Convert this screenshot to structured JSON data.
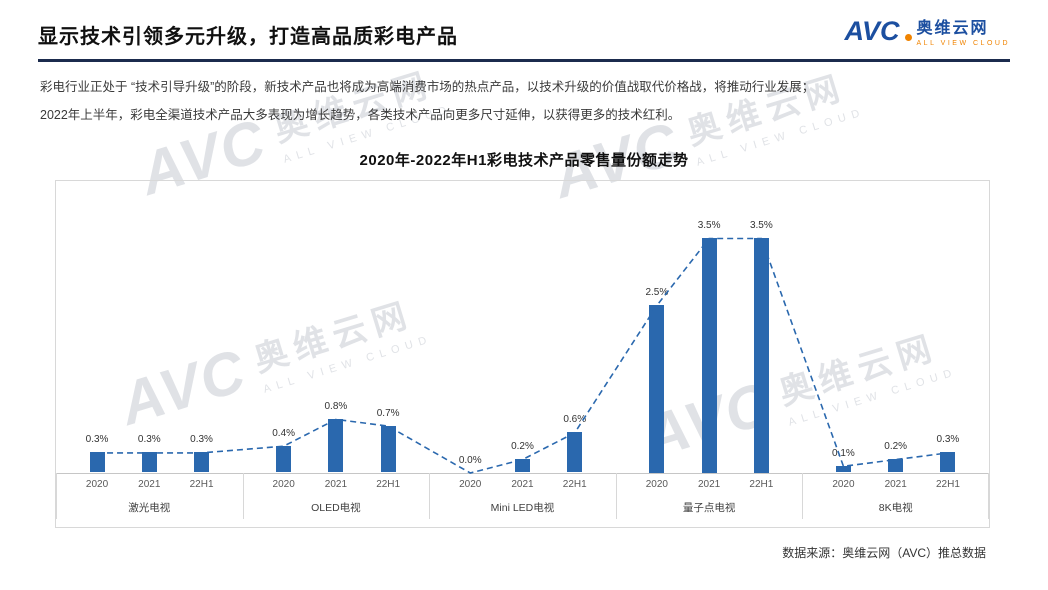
{
  "page": {
    "title": "显示技术引领多元升级，打造高品质彩电产品"
  },
  "logo": {
    "brand": "AVC",
    "name": "奥维云网",
    "tagline": "ALL VIEW CLOUD"
  },
  "intro": {
    "line1": "彩电行业正处于 “技术引导升级”的阶段，新技术产品也将成为高端消费市场的热点产品，以技术升级的价值战取代价格战，将推动行业发展；",
    "line2": "2022年上半年，彩电全渠道技术产品大多表现为增长趋势，各类技术产品向更多尺寸延伸，以获得更多的技术红利。"
  },
  "chart_data": {
    "type": "bar",
    "title": "2020年-2022年H1彩电技术产品零售量份额走势",
    "categories": [
      "2020",
      "2021",
      "22H1"
    ],
    "groups": [
      {
        "name": "激光电视",
        "values": [
          0.3,
          0.3,
          0.3
        ]
      },
      {
        "name": "OLED电视",
        "values": [
          0.4,
          0.8,
          0.7
        ]
      },
      {
        "name": "Mini LED电视",
        "values": [
          0.0,
          0.2,
          0.6
        ]
      },
      {
        "name": "量子点电视",
        "values": [
          2.5,
          3.5,
          3.5
        ]
      },
      {
        "name": "8K电视",
        "values": [
          0.1,
          0.2,
          0.3
        ]
      }
    ],
    "unit": "%",
    "ylim": [
      0,
      4
    ],
    "bar_color": "#2a68ae",
    "trendline": {
      "style": "dashed",
      "color": "#2a68ae"
    },
    "grid": false,
    "legend_position": "none"
  },
  "footer": {
    "source": "数据来源：奥维云网（AVC）推总数据"
  },
  "watermark": {
    "brand": "AVC",
    "name": "奥维云网",
    "tagline": "ALL VIEW CLOUD"
  }
}
